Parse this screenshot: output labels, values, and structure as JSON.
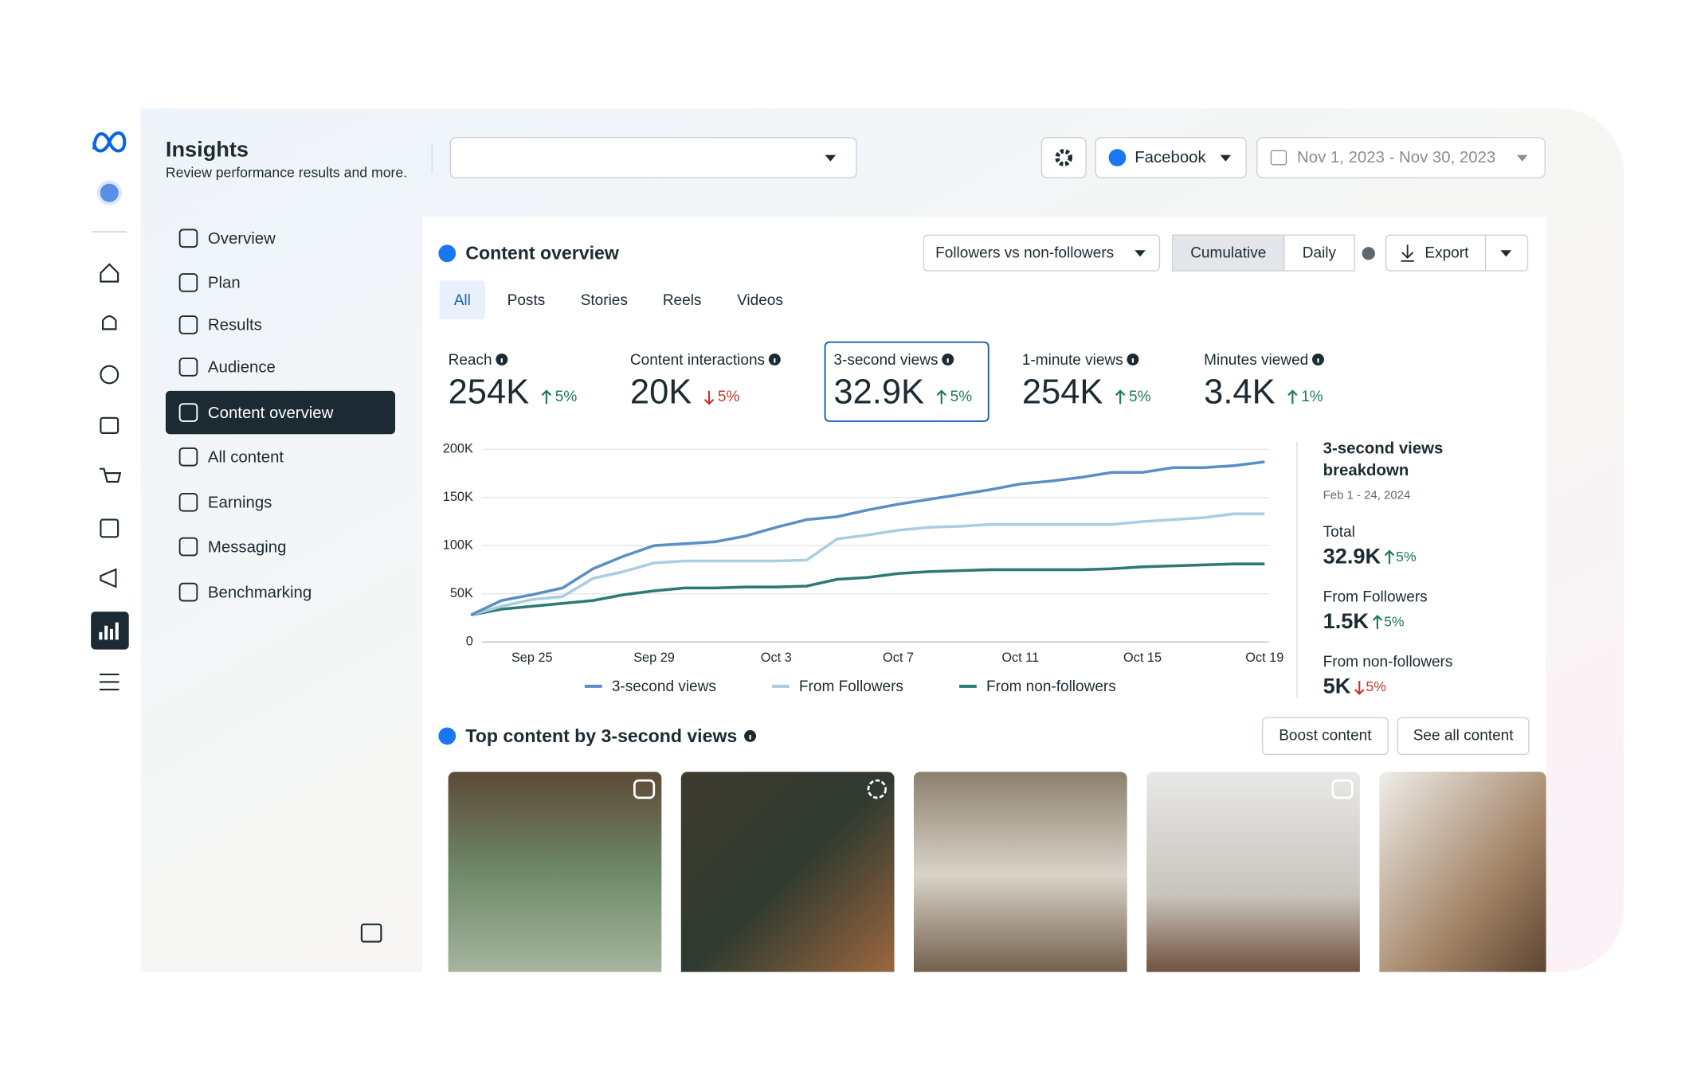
{
  "header": {
    "title": "Insights",
    "subtitle": "Review performance results and more."
  },
  "toolbar": {
    "platform": "Facebook",
    "date_range": "Nov 1, 2023 - Nov 30, 2023"
  },
  "nav": {
    "items": [
      "Overview",
      "Plan",
      "Results",
      "Audience",
      "Content overview",
      "All content",
      "Earnings",
      "Messaging",
      "Benchmarking"
    ],
    "active": 4
  },
  "content_overview": {
    "title": "Content overview",
    "filter": "Followers vs non-followers",
    "toggle": {
      "options": [
        "Cumulative",
        "Daily"
      ],
      "selected": 0
    },
    "export": "Export",
    "tabs": {
      "items": [
        "All",
        "Posts",
        "Stories",
        "Reels",
        "Videos"
      ],
      "selected": 0
    },
    "metrics": [
      {
        "label": "Reach",
        "value": "254K",
        "change": "5%",
        "direction": "up"
      },
      {
        "label": "Content interactions",
        "value": "20K",
        "change": "5%",
        "direction": "down"
      },
      {
        "label": "3-second views",
        "value": "32.9K",
        "change": "5%",
        "direction": "up"
      },
      {
        "label": "1-minute views",
        "value": "254K",
        "change": "5%",
        "direction": "up"
      },
      {
        "label": "Minutes viewed",
        "value": "3.4K",
        "change": "1%",
        "direction": "up"
      }
    ],
    "selected_metric": 2,
    "chart": {
      "type": "line",
      "categories": [
        null,
        null,
        "Sep 25",
        null,
        null,
        null,
        "Sep 29",
        null,
        null,
        null,
        "Oct 3",
        null,
        null,
        null,
        "Oct 7",
        null,
        null,
        null,
        "Oct 11",
        null,
        null,
        null,
        "Oct 15",
        null,
        null,
        null,
        "Oct 19"
      ],
      "series": [
        {
          "name": "3-second views",
          "color": "#5a8fc4",
          "values": [
            28000,
            43000,
            49000,
            56000,
            76000,
            89000,
            100000,
            102000,
            104000,
            110000,
            119000,
            127000,
            130000,
            137000,
            143000,
            148000,
            153000,
            158000,
            164000,
            167000,
            171000,
            176000,
            176000,
            181000,
            181000,
            183000,
            187000
          ]
        },
        {
          "name": "From Followers",
          "color": "#a9cde2",
          "values": [
            28000,
            37000,
            44000,
            47000,
            66000,
            73000,
            82000,
            84000,
            84000,
            84000,
            84000,
            85000,
            107000,
            111000,
            116000,
            119000,
            120000,
            122000,
            122000,
            122000,
            122000,
            122000,
            125000,
            127000,
            129000,
            133000,
            133000
          ]
        },
        {
          "name": "From non-followers",
          "color": "#2c7a72",
          "values": [
            28000,
            34000,
            37000,
            40000,
            43000,
            49000,
            53000,
            56000,
            56000,
            57000,
            57000,
            58000,
            65000,
            67000,
            71000,
            73000,
            74000,
            75000,
            75000,
            75000,
            75000,
            76000,
            78000,
            79000,
            80000,
            81000,
            81000
          ]
        }
      ],
      "ylim": [
        0,
        200000
      ],
      "yticks": [
        0,
        {
          "value": 50000,
          "label": "50K"
        },
        {
          "value": 100000,
          "label": "100K"
        },
        {
          "value": 150000,
          "label": "150K"
        },
        {
          "value": 200000,
          "label": "200K"
        }
      ],
      "grid": true
    },
    "breakdown": {
      "title": "3-second views breakdown",
      "date": "Feb 1 - 24, 2024",
      "items": [
        {
          "label": "Total",
          "value": "32.9K",
          "change": "5%",
          "direction": "up"
        },
        {
          "label": "From Followers",
          "value": "1.5K",
          "change": "5%",
          "direction": "up"
        },
        {
          "label": "From non-followers",
          "value": "5K",
          "change": "5%",
          "direction": "down"
        }
      ]
    }
  },
  "top_content": {
    "title": "Top content by 3-second views",
    "buttons": [
      "Boost content",
      "See all content"
    ]
  }
}
